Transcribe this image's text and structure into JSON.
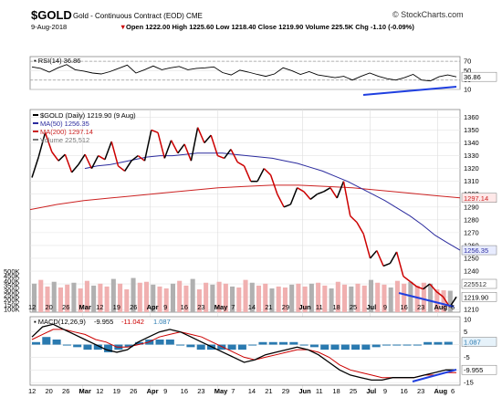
{
  "header": {
    "symbol": "$GOLD",
    "name": "Gold - Continuous Contract (EOD) CME",
    "brand": "© StockCharts.com",
    "date": "9-Aug-2018",
    "ohlc": "Open 1222.00  High 1225.60  Low 1218.40  Close 1219.90  Volume 225.5K  Chg -1.10 (-0.09%)",
    "arrow": "▼"
  },
  "colors": {
    "price": "#000000",
    "down": "#cc0000",
    "ma50": "#2b2b9e",
    "ma200": "#cc2222",
    "vol_up": "#b0b0b0",
    "vol_down": "#f0b0b0",
    "hist": "#2a7ab0",
    "trend": "#1f3fe0"
  },
  "chart_data": [
    {
      "type": "line",
      "panel": "RSI",
      "legend": "RSI(14) 36.86",
      "last_value_label": "36.86",
      "ylim": [
        10,
        80
      ],
      "yticks": [
        10,
        30,
        50,
        70
      ],
      "reference_lines": [
        30,
        70
      ],
      "values": [
        58,
        55,
        47,
        56,
        63,
        52,
        49,
        45,
        43,
        48,
        55,
        62,
        45,
        52,
        60,
        52,
        56,
        59,
        52,
        55,
        56,
        58,
        46,
        41,
        51,
        47,
        42,
        38,
        43,
        56,
        50,
        42,
        48,
        41,
        38,
        35,
        38,
        30,
        38,
        45,
        38,
        33,
        30,
        35,
        42,
        30,
        28,
        37,
        41,
        36.86
      ]
    },
    {
      "type": "line",
      "panel": "Price",
      "legend": [
        "$GOLD (Daily) 1219.90 (9 Aug)",
        "MA(50) 1256.35",
        "MA(200) 1297.14",
        "Volume 225,512"
      ],
      "ylim": [
        1208,
        1366
      ],
      "yticks": [
        1210,
        1220,
        1230,
        1240,
        1250,
        1260,
        1270,
        1280,
        1290,
        1300,
        1310,
        1320,
        1330,
        1340,
        1350,
        1360
      ],
      "volume_ticks": [
        "100K",
        "150K",
        "200K",
        "250K",
        "300K",
        "350K",
        "400K",
        "450K",
        "500K"
      ],
      "x_labels": [
        "12",
        "20",
        "26",
        "Mar",
        "12",
        "19",
        "26",
        "Apr",
        "9",
        "16",
        "23",
        "May",
        "7",
        "14",
        "21",
        "29",
        "Jun",
        "11",
        "18",
        "25",
        "Jul",
        "9",
        "16",
        "23",
        "Aug",
        "6"
      ],
      "price_labels": {
        "close": "1219.90",
        "ma50": "1256.35",
        "ma200": "1297.14",
        "volume": "225512"
      },
      "series": [
        {
          "name": "$GOLD",
          "values": [
            1313,
            1329,
            1348,
            1333,
            1326,
            1331,
            1317,
            1323,
            1331,
            1320,
            1330,
            1327,
            1341,
            1322,
            1318,
            1326,
            1330,
            1326,
            1350,
            1348,
            1328,
            1342,
            1332,
            1339,
            1326,
            1352,
            1340,
            1346,
            1330,
            1328,
            1335,
            1325,
            1322,
            1310,
            1310,
            1320,
            1315,
            1300,
            1290,
            1292,
            1305,
            1302,
            1296,
            1300,
            1302,
            1305,
            1297,
            1310,
            1283,
            1278,
            1269,
            1250,
            1256,
            1244,
            1246,
            1255,
            1236,
            1232,
            1228,
            1226,
            1230,
            1224,
            1220,
            1212,
            1219.9
          ]
        },
        {
          "name": "MA(50)",
          "values": [
            1320,
            1322,
            1323,
            1325,
            1327,
            1329,
            1330,
            1330,
            1331,
            1332,
            1332,
            1332,
            1331,
            1330,
            1329,
            1328,
            1326,
            1324,
            1321,
            1318,
            1314,
            1310,
            1305,
            1300,
            1295,
            1289,
            1283,
            1276,
            1268,
            1262,
            1256.35
          ]
        },
        {
          "name": "MA(200)",
          "values": [
            1288,
            1292,
            1295,
            1297,
            1299,
            1301,
            1303,
            1305,
            1306,
            1307,
            1307,
            1306,
            1305,
            1303,
            1301,
            1299,
            1297.14
          ]
        }
      ],
      "volume_k": [
        300,
        340,
        270,
        320,
        260,
        290,
        310,
        250,
        330,
        280,
        300,
        270,
        350,
        300,
        240,
        360,
        310,
        320,
        290,
        270,
        250,
        300,
        330,
        280,
        350,
        240,
        310,
        290,
        320,
        300,
        270,
        260,
        340,
        310,
        280,
        300,
        250,
        270,
        260,
        290,
        300,
        270,
        300,
        310,
        280,
        250,
        320,
        290,
        270,
        300,
        280,
        340,
        310,
        290,
        260,
        330,
        300,
        320,
        280,
        310,
        300,
        240,
        230,
        225.5
      ]
    },
    {
      "type": "line",
      "panel": "MACD",
      "legend": [
        "MACD(12,26,9)",
        "-9.955",
        "-11.042",
        "1.087"
      ],
      "ylim": [
        -16,
        11
      ],
      "yticks": [
        -15,
        -10,
        -5,
        0,
        5,
        10
      ],
      "value_labels": {
        "hist": "1.087",
        "macd": "-9.955"
      },
      "series": [
        {
          "name": "MACD",
          "values": [
            3,
            7,
            8,
            6,
            4,
            2,
            0,
            -2,
            -3,
            -2,
            1,
            3,
            5,
            6,
            5,
            3,
            1,
            -1,
            -3,
            -5,
            -7,
            -6,
            -4,
            -3,
            -2,
            -1,
            -2,
            -4,
            -7,
            -10,
            -12,
            -13,
            -14,
            -14,
            -13,
            -13,
            -13,
            -12,
            -11,
            -10,
            -9.955
          ]
        },
        {
          "name": "Signal",
          "values": [
            2,
            4,
            6,
            6,
            5,
            4,
            2,
            1,
            -1,
            -1,
            0,
            1,
            3,
            4,
            5,
            4,
            3,
            1,
            -1,
            -3,
            -5,
            -6,
            -5,
            -4,
            -3,
            -2,
            -2,
            -3,
            -5,
            -8,
            -10,
            -11,
            -12,
            -13,
            -13,
            -13,
            -13,
            -12,
            -12,
            -11,
            -11.042
          ]
        }
      ],
      "histogram": [
        1,
        3,
        2,
        0,
        -1,
        -2,
        -2,
        -3,
        -2,
        -1,
        1,
        2,
        2,
        2,
        0,
        -1,
        -2,
        -2,
        -2,
        -2,
        -2,
        0,
        1,
        1,
        1,
        1,
        0,
        -1,
        -2,
        -2,
        -2,
        -2,
        -2,
        -1,
        0,
        0,
        0,
        0,
        1,
        1,
        1.087
      ]
    }
  ]
}
